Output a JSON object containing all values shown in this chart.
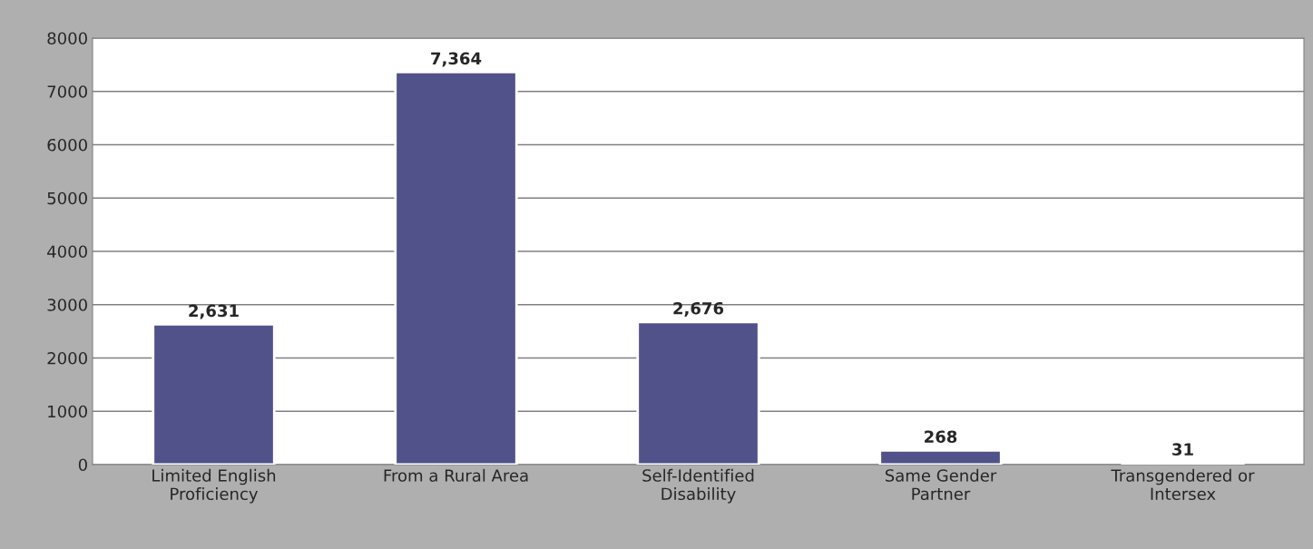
{
  "chart_data": {
    "type": "bar",
    "categories": [
      "Limited English\nProficiency",
      "From a Rural Area",
      "Self-Identified\nDisability",
      "Same Gender\nPartner",
      "Transgendered or\nIntersex"
    ],
    "values": [
      2631,
      7364,
      2676,
      268,
      31
    ],
    "value_labels": [
      "2,631",
      "7,364",
      "2,676",
      "268",
      "31"
    ],
    "color": "#52528a",
    "ylim": [
      0,
      8000
    ],
    "yticks": [
      0,
      1000,
      2000,
      3000,
      4000,
      5000,
      6000,
      7000,
      8000
    ],
    "grid": "y",
    "legend": false
  }
}
